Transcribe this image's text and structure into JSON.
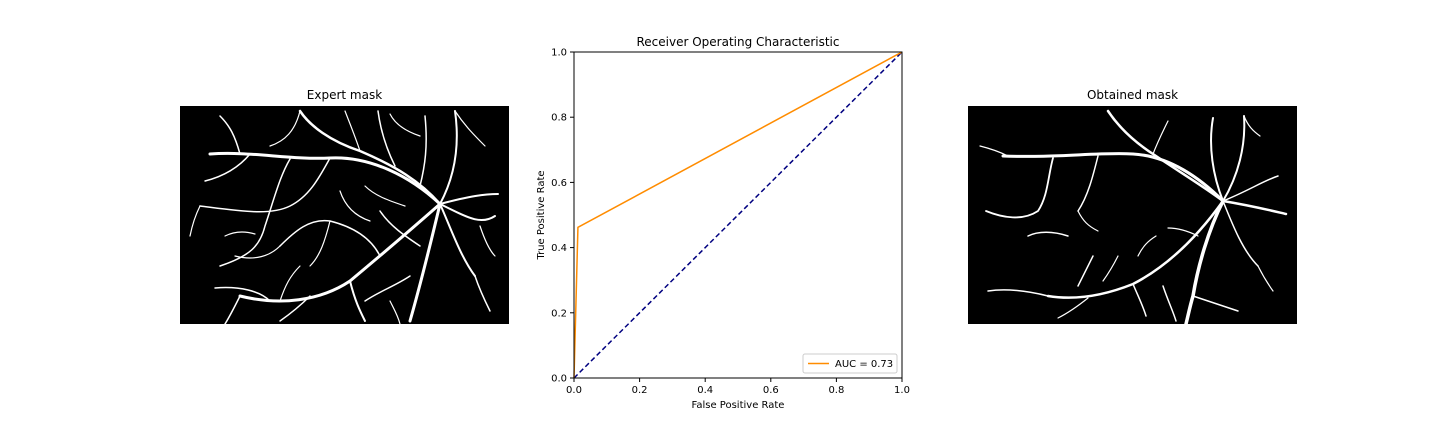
{
  "left_panel": {
    "title": "Expert mask"
  },
  "right_panel": {
    "title": "Obtained mask"
  },
  "chart_data": {
    "type": "line",
    "title": "Receiver Operating Characteristic",
    "xlabel": "False Positive Rate",
    "ylabel": "True Positive Rate",
    "xlim": [
      0,
      1
    ],
    "ylim": [
      0,
      1
    ],
    "xticks": [
      "0.0",
      "0.2",
      "0.4",
      "0.6",
      "0.8",
      "1.0"
    ],
    "yticks": [
      "0.0",
      "0.2",
      "0.4",
      "0.6",
      "0.8",
      "1.0"
    ],
    "grid": false,
    "legend_position": "lower-right",
    "series": [
      {
        "name": "AUC = 0.73",
        "color": "#ff8c00",
        "style": "solid",
        "x": [
          0.0,
          0.012,
          1.0
        ],
        "y": [
          0.0,
          0.462,
          1.0
        ]
      },
      {
        "name": "",
        "color": "#000080",
        "style": "dashed",
        "x": [
          0.0,
          1.0
        ],
        "y": [
          0.0,
          1.0
        ]
      }
    ]
  }
}
